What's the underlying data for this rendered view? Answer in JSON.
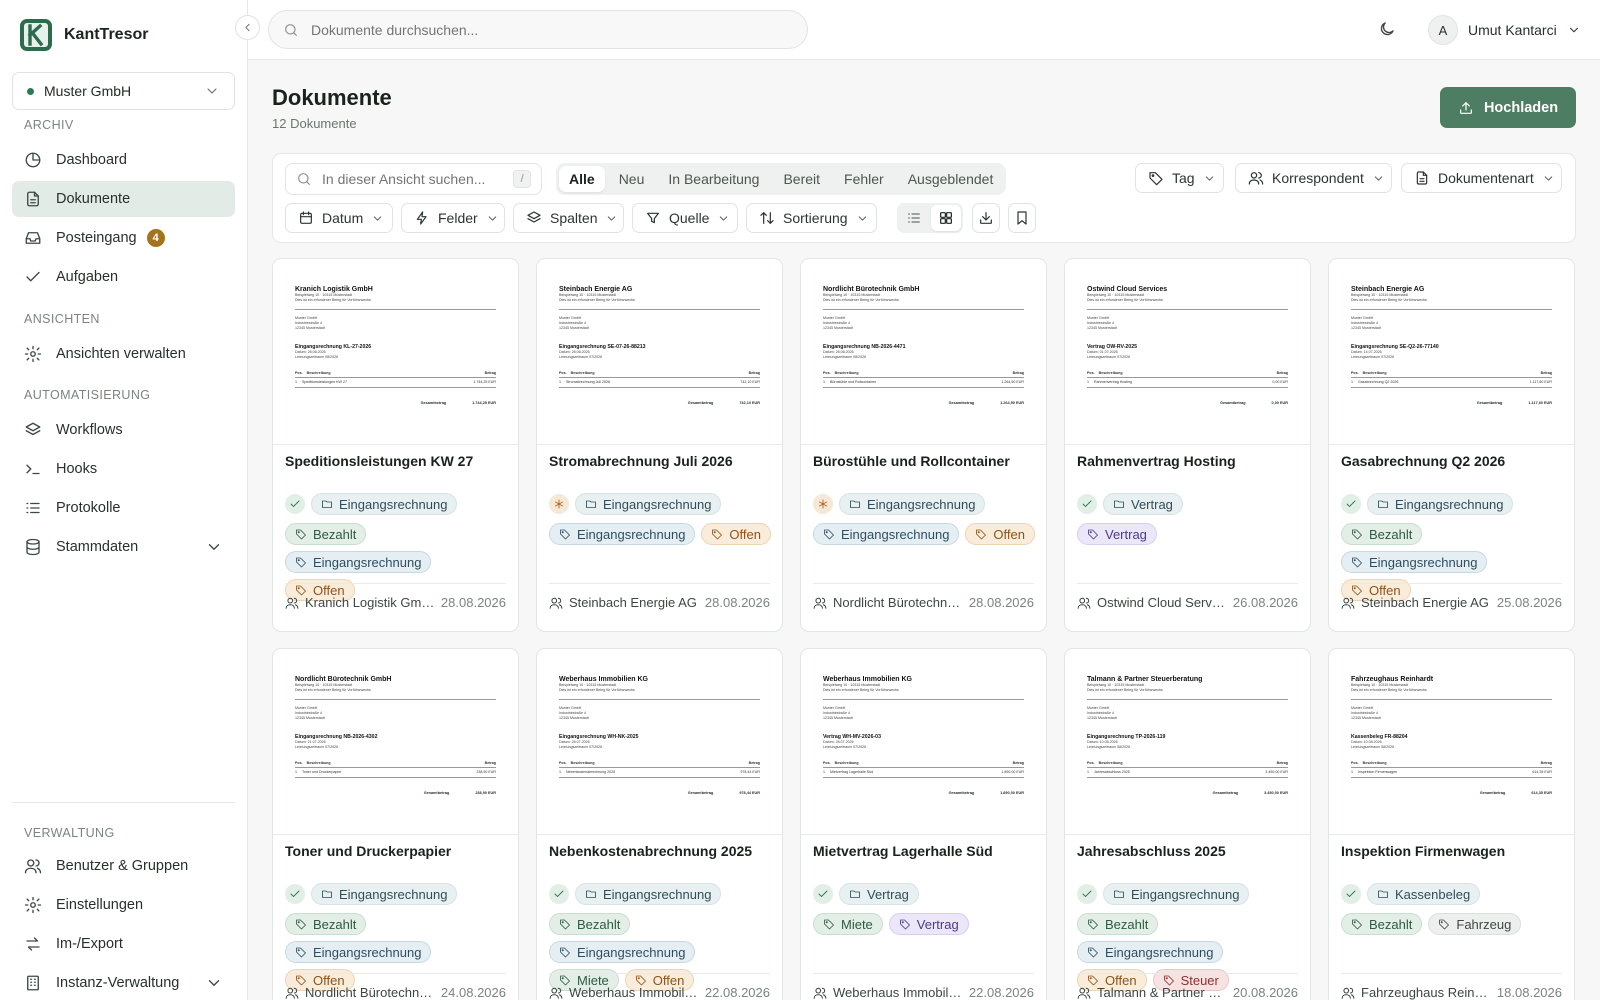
{
  "app": {
    "name": "KantTresor"
  },
  "org": {
    "name": "Muster GmbH"
  },
  "sidebar": {
    "sections": {
      "archiv": "ARCHIV",
      "ansichten": "ANSICHTEN",
      "automatisierung": "AUTOMATISIERUNG",
      "verwaltung": "VERWALTUNG"
    },
    "items": {
      "dashboard": "Dashboard",
      "dokumente": "Dokumente",
      "posteingang": "Posteingang",
      "posteingang_badge": "4",
      "aufgaben": "Aufgaben",
      "ansichten_verwalten": "Ansichten verwalten",
      "workflows": "Workflows",
      "hooks": "Hooks",
      "protokolle": "Protokolle",
      "stammdaten": "Stammdaten",
      "benutzer": "Benutzer & Gruppen",
      "einstellungen": "Einstellungen",
      "import_export": "Im-/Export",
      "instanz": "Instanz-Verwaltung"
    }
  },
  "topbar": {
    "search_placeholder": "Dokumente durchsuchen...",
    "user_initial": "A",
    "user_name": "Umut Kantarci"
  },
  "page": {
    "title": "Dokumente",
    "count": "12 Dokumente",
    "upload_label": "Hochladen"
  },
  "toolbar": {
    "search_placeholder": "In dieser Ansicht suchen...",
    "search_shortcut": "/",
    "tabs": [
      "Alle",
      "Neu",
      "In Bearbeitung",
      "Bereit",
      "Fehler",
      "Ausgeblendet"
    ],
    "filters_right": {
      "tag": "Tag",
      "korrespondent": "Korrespondent",
      "dokumentenart": "Dokumentenart"
    },
    "filters_left": {
      "datum": "Datum",
      "felder": "Felder",
      "spalten": "Spalten",
      "quelle": "Quelle",
      "sortierung": "Sortierung"
    },
    "view_mode": "grid"
  },
  "documents": [
    {
      "title": "Speditionsleistungen KW 27",
      "status": "ok",
      "type": "Eingangsrechnung",
      "tags": [
        [
          "Bezahlt",
          "green"
        ],
        [
          "Eingangsrechnung",
          "blue"
        ],
        [
          "Offen",
          "orange"
        ]
      ],
      "correspondent": "Kranich Logistik GmbH",
      "date": "28.08.2026",
      "preview": {
        "company": "Kranich Logistik GmbH",
        "doc": "Eingangsrechnung KL-27-2026",
        "date": "Datum: 28.08.2026",
        "period": "Leistungszeitraum 08/2026",
        "item": "Speditionsleistungen KW 27",
        "amount": "1.744,25 EUR",
        "total": "1.744,25 EUR"
      }
    },
    {
      "title": "Stromabrechnung Juli 2026",
      "status": "new",
      "type": "Eingangsrechnung",
      "tags": [
        [
          "Eingangsrechnung",
          "blue"
        ],
        [
          "Offen",
          "orange"
        ]
      ],
      "correspondent": "Steinbach Energie AG",
      "date": "28.08.2026",
      "preview": {
        "company": "Steinbach Energie AG",
        "doc": "Eingangsrechnung SE-07-26-88213",
        "date": "Datum: 28.08.2026",
        "period": "Leistungszeitraum 07/2026",
        "item": "Stromabrechnung Juli 2026",
        "amount": "742,10 EUR",
        "total": "742,10 EUR"
      }
    },
    {
      "title": "Bürostühle und Rollcontainer",
      "status": "new",
      "type": "Eingangsrechnung",
      "tags": [
        [
          "Eingangsrechnung",
          "blue"
        ],
        [
          "Offen",
          "orange"
        ]
      ],
      "correspondent": "Nordlicht Bürotechnik GmbH",
      "date": "28.08.2026",
      "preview": {
        "company": "Nordlicht Bürotechnik GmbH",
        "doc": "Eingangsrechnung NB-2026-4471",
        "date": "Datum: 28.08.2026",
        "period": "Leistungszeitraum 08/2026",
        "item": "Bürostühle und Rollcontainer",
        "amount": "1.264,50 EUR",
        "total": "1.264,50 EUR"
      }
    },
    {
      "title": "Rahmenvertrag Hosting",
      "status": "ok",
      "type": "Vertrag",
      "tags": [
        [
          "Vertrag",
          "purple"
        ]
      ],
      "correspondent": "Ostwind Cloud Services",
      "date": "26.08.2026",
      "preview": {
        "company": "Ostwind Cloud Services",
        "doc": "Vertrag OW-RV-2025",
        "date": "Datum: 01.07.2026",
        "period": "Leistungszeitraum 07/2026",
        "item": "Rahmenvertrag Hosting",
        "amount": "0,00 EUR",
        "total": "0,00 EUR"
      }
    },
    {
      "title": "Gasabrechnung Q2 2026",
      "status": "ok",
      "type": "Eingangsrechnung",
      "tags": [
        [
          "Bezahlt",
          "green"
        ],
        [
          "Eingangsrechnung",
          "blue"
        ],
        [
          "Offen",
          "orange"
        ]
      ],
      "correspondent": "Steinbach Energie AG",
      "date": "25.08.2026",
      "preview": {
        "company": "Steinbach Energie AG",
        "doc": "Eingangsrechnung SE-Q2-26-77140",
        "date": "Datum: 14.07.2026",
        "period": "Leistungszeitraum 07/2026",
        "item": "Gasabrechnung Q2 2026",
        "amount": "1.117,60 EUR",
        "total": "1.117,60 EUR"
      }
    },
    {
      "title": "Toner und Druckerpapier",
      "status": "ok",
      "type": "Eingangsrechnung",
      "tags": [
        [
          "Bezahlt",
          "green"
        ],
        [
          "Eingangsrechnung",
          "blue"
        ],
        [
          "Offen",
          "orange"
        ]
      ],
      "correspondent": "Nordlicht Bürotechnik GmbH",
      "date": "24.08.2026",
      "preview": {
        "company": "Nordlicht Bürotechnik GmbH",
        "doc": "Eingangsrechnung NB-2026-4302",
        "date": "Datum: 21.07.2026",
        "period": "Leistungszeitraum 07/2026",
        "item": "Toner und Druckerpapier",
        "amount": "238,90 EUR",
        "total": "238,90 EUR"
      }
    },
    {
      "title": "Nebenkostenabrechnung 2025",
      "status": "ok",
      "type": "Eingangsrechnung",
      "tags": [
        [
          "Bezahlt",
          "green"
        ],
        [
          "Eingangsrechnung",
          "blue"
        ],
        [
          "Miete",
          "green"
        ],
        [
          "Offen",
          "orange"
        ]
      ],
      "correspondent": "Weberhaus Immobilien KG",
      "date": "22.08.2026",
      "preview": {
        "company": "Weberhaus Immobilien KG",
        "doc": "Eingangsrechnung WH-NK-2025",
        "date": "Datum: 28.07.2026",
        "period": "Leistungszeitraum 07/2026",
        "item": "Nebenkostenabrechnung 2025",
        "amount": "978,44 EUR",
        "total": "978,44 EUR"
      }
    },
    {
      "title": "Mietvertrag Lagerhalle Süd",
      "status": "ok",
      "type": "Vertrag",
      "tags": [
        [
          "Miete",
          "green"
        ],
        [
          "Vertrag",
          "purple"
        ]
      ],
      "correspondent": "Weberhaus Immobilien KG",
      "date": "22.08.2026",
      "preview": {
        "company": "Weberhaus Immobilien KG",
        "doc": "Vertrag WH-MV-2026-03",
        "date": "Datum: 28.07.2026",
        "period": "Leistungszeitraum 07/2026",
        "item": "Mietvertrag Lagerhalle Süd",
        "amount": "1.890,00 EUR",
        "total": "1.890,00 EUR"
      }
    },
    {
      "title": "Jahresabschluss 2025",
      "status": "ok",
      "type": "Eingangsrechnung",
      "tags": [
        [
          "Bezahlt",
          "green"
        ],
        [
          "Eingangsrechnung",
          "blue"
        ],
        [
          "Offen",
          "orange"
        ],
        [
          "Steuer",
          "red"
        ]
      ],
      "correspondent": "Talmann & Partner Steuerberatung",
      "date": "20.08.2026",
      "preview": {
        "company": "Talmann & Partner Steuerberatung",
        "doc": "Eingangsrechnung TP-2026-119",
        "date": "Datum: 10.08.2026",
        "period": "Leistungszeitraum 08/2026",
        "item": "Jahresabschluss 2025",
        "amount": "3.450,00 EUR",
        "total": "3.450,00 EUR"
      }
    },
    {
      "title": "Inspektion Firmenwagen",
      "status": "ok",
      "type": "Kassenbeleg",
      "tags": [
        [
          "Bezahlt",
          "green"
        ],
        [
          "Fahrzeug",
          "gray"
        ]
      ],
      "correspondent": "Fahrzeughaus Reinhardt",
      "date": "18.08.2026",
      "preview": {
        "company": "Fahrzeughaus Reinhardt",
        "doc": "Kassenbeleg FR-88204",
        "date": "Datum: 10.08.2026",
        "period": "Leistungszeitraum 08/2026",
        "item": "Inspektion Firmenwagen",
        "amount": "614,35 EUR",
        "total": "614,35 EUR"
      }
    }
  ],
  "preview_common": {
    "address_line": "Beispielweg 10 · 10315 Musterstadt",
    "note_line": "Dies ist ein erfundener Beleg für Vorführzwecke.",
    "recipient": [
      "Muster GmbH",
      "Industriestraße 4",
      "12345 Musterstadt"
    ],
    "col_pos": "Pos.",
    "col_desc": "Beschreibung",
    "col_amount": "Betrag",
    "pos_no": "1",
    "total_label": "Gesamtbetrag"
  },
  "colors": {
    "brand": "#2c6b4c",
    "accent_button": "#4d7d62",
    "badge": "#a4741c"
  }
}
